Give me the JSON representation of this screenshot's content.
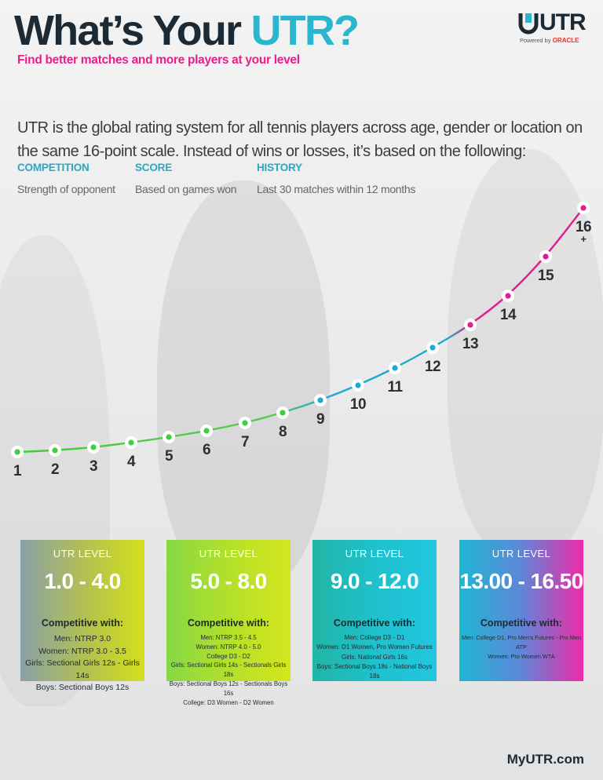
{
  "header": {
    "title_prefix": "What’s Your ",
    "title_accent": "UTR?",
    "subtitle": "Find better matches and more players at your level"
  },
  "logo": {
    "name": "UTR",
    "powered_by": "Powered by",
    "partner": "ORACLE"
  },
  "intro": "UTR is the global rating system for all tennis players across age, gender or location on the same 16-point scale. Instead of wins or losses, it’s based on the following:",
  "factors": [
    {
      "heading": "COMPETITION",
      "description": "Strength of opponent"
    },
    {
      "heading": "SCORE",
      "description": "Based on games won"
    },
    {
      "heading": "HISTORY",
      "description": "Last 30 matches within 12 months"
    }
  ],
  "scale": {
    "levels": [
      "1",
      "2",
      "3",
      "4",
      "5",
      "6",
      "7",
      "8",
      "9",
      "10",
      "11",
      "12",
      "13",
      "14",
      "15",
      "16"
    ],
    "top_suffix": "+"
  },
  "cards": [
    {
      "heading": "UTR LEVEL",
      "range": "1.0 - 4.0",
      "competitive_label": "Competitive with:",
      "lines": [
        "Men: NTRP 3.0",
        "Women: NTRP 3.0 - 3.5",
        "Girls: Sectional Girls 12s - Girls 14s",
        "Boys: Sectional Boys 12s"
      ]
    },
    {
      "heading": "UTR LEVEL",
      "range": "5.0 - 8.0",
      "competitive_label": "Competitive with:",
      "lines": [
        "Men: NTRP 3.5 - 4.5",
        "Women: NTRP 4.0 - 5.0",
        "College D3 - D2",
        "Girls: Sectional Girls 14s - Sectionals Girls 18s",
        "Boys: Sectional Boys 12s - Sectionals Boys 16s",
        "College: D3 Women - D2 Women"
      ]
    },
    {
      "heading": "UTR LEVEL",
      "range": "9.0 - 12.0",
      "competitive_label": "Competitive with:",
      "lines": [
        "Men: College D3 - D1",
        "Women: D1 Women, Pro Women Futures",
        "Girls: National Girls 16s",
        "Boys: Sectional Boys 18s - National Boys 18s"
      ]
    },
    {
      "heading": "UTR LEVEL",
      "range": "13.00 - 16.50",
      "competitive_label": "Competitive with:",
      "lines": [
        "Men: College D1, Pro Men’s Futures - Pro Men ATP",
        "Women: Pro Women WTA"
      ]
    }
  ],
  "footer": {
    "site": "MyUTR.com"
  },
  "colors": {
    "title": "#1b2a35",
    "accent_teal": "#2bb6cf",
    "accent_pink": "#e91e8c",
    "scale_green": "#3ecf3e",
    "scale_blue": "#1ea9cf",
    "scale_magenta": "#e31b8f"
  },
  "icons": [
    "utr-logo-icon",
    "scale-dot-icon"
  ]
}
